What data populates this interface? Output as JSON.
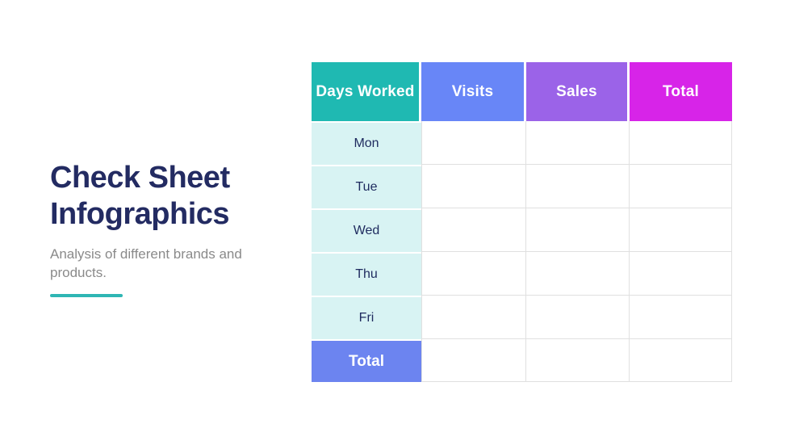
{
  "title": {
    "lines": [
      "Check Sheet",
      "Infographics"
    ],
    "color": "#232B62"
  },
  "subtitle": {
    "lines": [
      "Analysis of different brands and",
      "products."
    ],
    "color": "#8A8A8A"
  },
  "accent_color": "#2FB6B4",
  "table": {
    "columns": [
      {
        "header": "Days Worked",
        "color": "#1FB9B2"
      },
      {
        "header": "Visits",
        "color": "#6886F7"
      },
      {
        "header": "Sales",
        "color": "#9B63E8"
      },
      {
        "header": "Total",
        "color": "#D724E8"
      }
    ],
    "day_rows": [
      "Mon",
      "Tue",
      "Wed",
      "Thu",
      "Fri"
    ],
    "footer": {
      "label": "Total",
      "color": "#6C84F0"
    },
    "day_cell_bg": "#D8F3F3",
    "day_text_color": "#1E2A5E",
    "grid_line_color": "#E0E0E0",
    "empty_cell_bg": "#FFFFFF"
  }
}
